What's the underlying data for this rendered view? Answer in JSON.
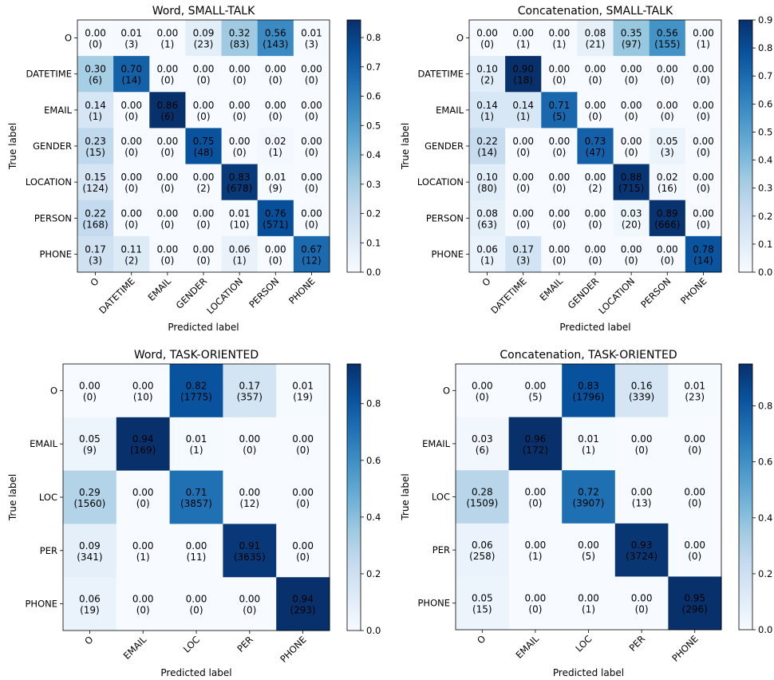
{
  "colormap": "Blues",
  "chart_data": [
    {
      "type": "heatmap",
      "title": "Word, SMALL-TALK",
      "xlabel": "Predicted label",
      "ylabel": "True label",
      "labels": [
        "O",
        "DATETIME",
        "EMAIL",
        "GENDER",
        "LOCATION",
        "PERSON",
        "PHONE"
      ],
      "values": [
        [
          "0.00",
          "0.01",
          "0.00",
          "0.09",
          "0.32",
          "0.56",
          "0.01"
        ],
        [
          "0.30",
          "0.70",
          "0.00",
          "0.00",
          "0.00",
          "0.00",
          "0.00"
        ],
        [
          "0.14",
          "0.00",
          "0.86",
          "0.00",
          "0.00",
          "0.00",
          "0.00"
        ],
        [
          "0.23",
          "0.00",
          "0.00",
          "0.75",
          "0.00",
          "0.02",
          "0.00"
        ],
        [
          "0.15",
          "0.00",
          "0.00",
          "0.00",
          "0.83",
          "0.01",
          "0.00"
        ],
        [
          "0.22",
          "0.00",
          "0.00",
          "0.00",
          "0.01",
          "0.76",
          "0.00"
        ],
        [
          "0.17",
          "0.11",
          "0.00",
          "0.00",
          "0.06",
          "0.00",
          "0.67"
        ]
      ],
      "counts": [
        [
          "(0)",
          "(3)",
          "(1)",
          "(23)",
          "(83)",
          "(143)",
          "(3)"
        ],
        [
          "(6)",
          "(14)",
          "(0)",
          "(0)",
          "(0)",
          "(0)",
          "(0)"
        ],
        [
          "(1)",
          "(0)",
          "(6)",
          "(0)",
          "(0)",
          "(0)",
          "(0)"
        ],
        [
          "(15)",
          "(0)",
          "(0)",
          "(48)",
          "(0)",
          "(1)",
          "(0)"
        ],
        [
          "(124)",
          "(0)",
          "(0)",
          "(2)",
          "(678)",
          "(9)",
          "(0)"
        ],
        [
          "(168)",
          "(0)",
          "(0)",
          "(0)",
          "(10)",
          "(571)",
          "(0)"
        ],
        [
          "(3)",
          "(2)",
          "(0)",
          "(0)",
          "(1)",
          "(0)",
          "(12)"
        ]
      ],
      "colorbar": {
        "range": [
          0,
          0.86
        ],
        "ticks": [
          "0.0",
          "0.1",
          "0.2",
          "0.3",
          "0.4",
          "0.5",
          "0.6",
          "0.7",
          "0.8"
        ]
      }
    },
    {
      "type": "heatmap",
      "title": "Concatenation, SMALL-TALK",
      "xlabel": "Predicted label",
      "ylabel": "True label",
      "labels": [
        "O",
        "DATETIME",
        "EMAIL",
        "GENDER",
        "LOCATION",
        "PERSON",
        "PHONE"
      ],
      "values": [
        [
          "0.00",
          "0.00",
          "0.00",
          "0.08",
          "0.35",
          "0.56",
          "0.00"
        ],
        [
          "0.10",
          "0.90",
          "0.00",
          "0.00",
          "0.00",
          "0.00",
          "0.00"
        ],
        [
          "0.14",
          "0.14",
          "0.71",
          "0.00",
          "0.00",
          "0.00",
          "0.00"
        ],
        [
          "0.22",
          "0.00",
          "0.00",
          "0.73",
          "0.00",
          "0.05",
          "0.00"
        ],
        [
          "0.10",
          "0.00",
          "0.00",
          "0.00",
          "0.88",
          "0.02",
          "0.00"
        ],
        [
          "0.08",
          "0.00",
          "0.00",
          "0.00",
          "0.03",
          "0.89",
          "0.00"
        ],
        [
          "0.06",
          "0.17",
          "0.00",
          "0.00",
          "0.00",
          "0.00",
          "0.78"
        ]
      ],
      "counts": [
        [
          "(0)",
          "(1)",
          "(1)",
          "(21)",
          "(97)",
          "(155)",
          "(1)"
        ],
        [
          "(2)",
          "(18)",
          "(0)",
          "(0)",
          "(0)",
          "(0)",
          "(0)"
        ],
        [
          "(1)",
          "(1)",
          "(5)",
          "(0)",
          "(0)",
          "(0)",
          "(0)"
        ],
        [
          "(14)",
          "(0)",
          "(0)",
          "(47)",
          "(0)",
          "(3)",
          "(0)"
        ],
        [
          "(80)",
          "(0)",
          "(0)",
          "(2)",
          "(715)",
          "(16)",
          "(0)"
        ],
        [
          "(63)",
          "(0)",
          "(0)",
          "(0)",
          "(20)",
          "(666)",
          "(0)"
        ],
        [
          "(1)",
          "(3)",
          "(0)",
          "(0)",
          "(0)",
          "(0)",
          "(14)"
        ]
      ],
      "colorbar": {
        "range": [
          0,
          0.9
        ],
        "ticks": [
          "0.0",
          "0.1",
          "0.2",
          "0.3",
          "0.4",
          "0.5",
          "0.6",
          "0.7",
          "0.8",
          "0.9"
        ]
      }
    },
    {
      "type": "heatmap",
      "title": "Word, TASK-ORIENTED",
      "xlabel": "Predicted label",
      "ylabel": "True label",
      "labels": [
        "O",
        "EMAIL",
        "LOC",
        "PER",
        "PHONE"
      ],
      "values": [
        [
          "0.00",
          "0.00",
          "0.82",
          "0.17",
          "0.01"
        ],
        [
          "0.05",
          "0.94",
          "0.01",
          "0.00",
          "0.00"
        ],
        [
          "0.29",
          "0.00",
          "0.71",
          "0.00",
          "0.00"
        ],
        [
          "0.09",
          "0.00",
          "0.00",
          "0.91",
          "0.00"
        ],
        [
          "0.06",
          "0.00",
          "0.00",
          "0.00",
          "0.94"
        ]
      ],
      "counts": [
        [
          "(0)",
          "(10)",
          "(1775)",
          "(357)",
          "(19)"
        ],
        [
          "(9)",
          "(169)",
          "(1)",
          "(0)",
          "(0)"
        ],
        [
          "(1560)",
          "(0)",
          "(3857)",
          "(12)",
          "(0)"
        ],
        [
          "(341)",
          "(1)",
          "(11)",
          "(3635)",
          "(0)"
        ],
        [
          "(19)",
          "(0)",
          "(0)",
          "(0)",
          "(293)"
        ]
      ],
      "colorbar": {
        "range": [
          0,
          0.94
        ],
        "ticks": [
          "0.0",
          "0.2",
          "0.4",
          "0.6",
          "0.8"
        ]
      }
    },
    {
      "type": "heatmap",
      "title": "Concatenation, TASK-ORIENTED",
      "xlabel": "Predicted label",
      "ylabel": "True label",
      "labels": [
        "O",
        "EMAIL",
        "LOC",
        "PER",
        "PHONE"
      ],
      "values": [
        [
          "0.00",
          "0.00",
          "0.83",
          "0.16",
          "0.01"
        ],
        [
          "0.03",
          "0.96",
          "0.01",
          "0.00",
          "0.00"
        ],
        [
          "0.28",
          "0.00",
          "0.72",
          "0.00",
          "0.00"
        ],
        [
          "0.06",
          "0.00",
          "0.00",
          "0.93",
          "0.00"
        ],
        [
          "0.05",
          "0.00",
          "0.00",
          "0.00",
          "0.95"
        ]
      ],
      "counts": [
        [
          "(0)",
          "(5)",
          "(1796)",
          "(339)",
          "(23)"
        ],
        [
          "(6)",
          "(172)",
          "(1)",
          "(0)",
          "(0)"
        ],
        [
          "(1509)",
          "(0)",
          "(3907)",
          "(13)",
          "(0)"
        ],
        [
          "(258)",
          "(1)",
          "(5)",
          "(3724)",
          "(0)"
        ],
        [
          "(15)",
          "(0)",
          "(1)",
          "(0)",
          "(296)"
        ]
      ],
      "colorbar": {
        "range": [
          0,
          0.95
        ],
        "ticks": [
          "0.0",
          "0.2",
          "0.4",
          "0.6",
          "0.8"
        ]
      }
    }
  ]
}
